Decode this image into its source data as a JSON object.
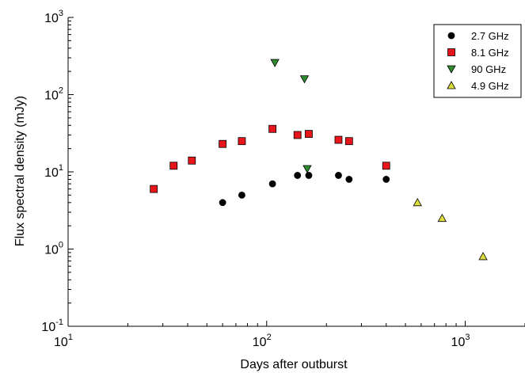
{
  "chart_data": {
    "type": "scatter",
    "xlabel": "Days after outburst",
    "ylabel": "Flux spectral density (mJy)",
    "x_scale": "log",
    "y_scale": "log",
    "xlim": [
      10,
      2000
    ],
    "ylim": [
      0.1,
      1000
    ],
    "x_ticks": [
      {
        "value": 10,
        "base": "10",
        "exp": "1"
      },
      {
        "value": 100,
        "base": "10",
        "exp": "2"
      },
      {
        "value": 1000,
        "base": "10",
        "exp": "3"
      }
    ],
    "y_ticks": [
      {
        "value": 0.1,
        "base": "10",
        "exp": "-1"
      },
      {
        "value": 1,
        "base": "10",
        "exp": "0"
      },
      {
        "value": 10,
        "base": "10",
        "exp": "1"
      },
      {
        "value": 100,
        "base": "10",
        "exp": "2"
      },
      {
        "value": 1000,
        "base": "10",
        "exp": "3"
      }
    ],
    "grid": false,
    "legend_position": "top-right",
    "series": [
      {
        "name": "2.7 GHz",
        "marker": "circle",
        "color": "#000000",
        "points": [
          [
            60,
            4
          ],
          [
            75,
            5
          ],
          [
            107,
            7
          ],
          [
            143,
            9
          ],
          [
            163,
            9
          ],
          [
            230,
            9
          ],
          [
            260,
            8
          ],
          [
            400,
            8
          ]
        ]
      },
      {
        "name": "8.1 GHz",
        "marker": "square",
        "color": "#e8161c",
        "points": [
          [
            27,
            6
          ],
          [
            34,
            12
          ],
          [
            42,
            14
          ],
          [
            60,
            23
          ],
          [
            75,
            25
          ],
          [
            107,
            36
          ],
          [
            143,
            30
          ],
          [
            163,
            31
          ],
          [
            230,
            26
          ],
          [
            260,
            25
          ],
          [
            400,
            12
          ]
        ]
      },
      {
        "name": "90 GHz",
        "marker": "triangle-down",
        "color": "#2e8b2e",
        "points": [
          [
            110,
            260
          ],
          [
            155,
            160
          ],
          [
            160,
            11
          ]
        ]
      },
      {
        "name": "4.9 GHz",
        "marker": "triangle-up",
        "color": "#dede3a",
        "points": [
          [
            575,
            4
          ],
          [
            765,
            2.5
          ],
          [
            1230,
            0.8
          ]
        ]
      }
    ]
  }
}
